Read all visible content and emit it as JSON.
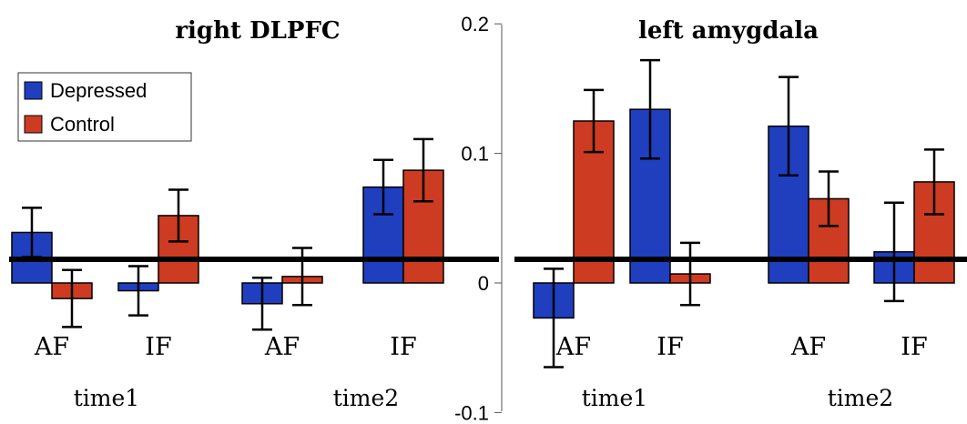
{
  "chart_data": [
    {
      "type": "bar",
      "title": "right DLPFC",
      "categories": [
        "AF",
        "IF",
        "AF",
        "IF"
      ],
      "groups": [
        {
          "label": "time1",
          "categories": [
            0,
            1
          ]
        },
        {
          "label": "time2",
          "categories": [
            2,
            3
          ]
        }
      ],
      "series": [
        {
          "name": "Depressed",
          "color": "#1f3fbf",
          "values": [
            0.039,
            -0.006,
            -0.016,
            0.074
          ],
          "errors": [
            0.019,
            0.019,
            0.02,
            0.021
          ]
        },
        {
          "name": "Control",
          "color": "#cc3b22",
          "values": [
            -0.012,
            0.052,
            0.005,
            0.087
          ],
          "errors": [
            0.022,
            0.02,
            0.022,
            0.024
          ]
        }
      ]
    },
    {
      "type": "bar",
      "title": "left amygdala",
      "categories": [
        "AF",
        "IF",
        "AF",
        "IF"
      ],
      "groups": [
        {
          "label": "time1",
          "categories": [
            0,
            1
          ]
        },
        {
          "label": "time2",
          "categories": [
            2,
            3
          ]
        }
      ],
      "series": [
        {
          "name": "Depressed",
          "color": "#1f3fbf",
          "values": [
            -0.027,
            0.134,
            0.121,
            0.024
          ],
          "errors": [
            0.038,
            0.038,
            0.038,
            0.038
          ]
        },
        {
          "name": "Control",
          "color": "#cc3b22",
          "values": [
            0.125,
            0.007,
            0.065,
            0.078
          ],
          "errors": [
            0.024,
            0.024,
            0.021,
            0.025
          ]
        }
      ]
    }
  ],
  "axis": {
    "ylim": [
      -0.1,
      0.2
    ],
    "ticks": [
      0.2,
      0.1,
      0,
      -0.1
    ],
    "tick_labels": [
      "0.2",
      "0.1",
      "0",
      "-0.1"
    ]
  },
  "legend": {
    "placement": "top-left",
    "entries": [
      {
        "name": "Depressed",
        "color": "#1f3fbf"
      },
      {
        "name": "Control",
        "color": "#cc3b22"
      }
    ]
  }
}
